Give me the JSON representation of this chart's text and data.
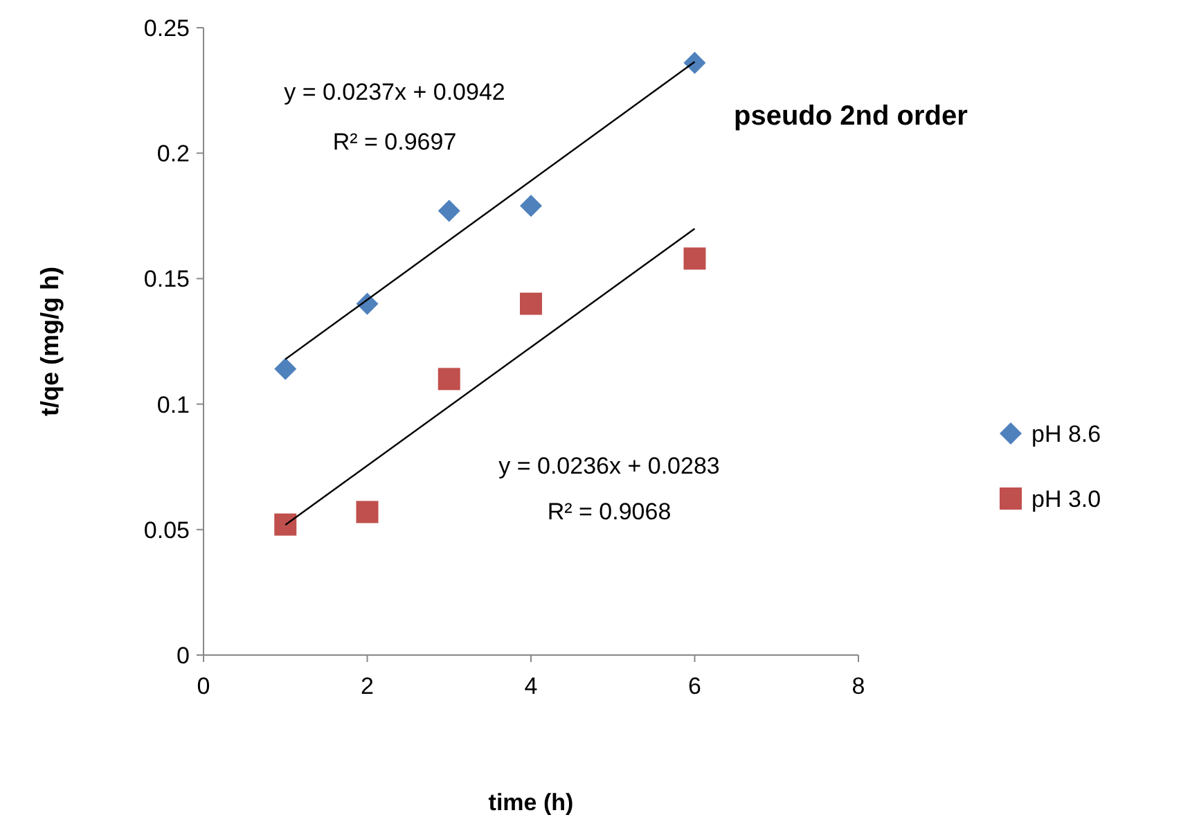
{
  "chart_data": {
    "type": "scatter",
    "xlabel": "time (h)",
    "ylabel": "t/qe (mg/g h)",
    "xlim": [
      0,
      8
    ],
    "xticks": [
      0,
      2,
      4,
      6,
      8
    ],
    "ylim": [
      0,
      0.25
    ],
    "yticks": [
      0,
      0.05,
      0.1,
      0.15,
      0.2,
      0.25
    ],
    "grid": false,
    "legend": "right",
    "series": [
      {
        "name": "pH 8.6",
        "marker": "diamond",
        "color": "#4f81bd",
        "x": [
          1,
          2,
          3,
          4,
          6
        ],
        "values": [
          0.114,
          0.14,
          0.177,
          0.179,
          0.236
        ]
      },
      {
        "name": "pH 3.0",
        "marker": "square",
        "color": "#c0504d",
        "x": [
          1,
          2,
          3,
          4,
          6
        ],
        "values": [
          0.052,
          0.057,
          0.11,
          0.14,
          0.158
        ]
      },
      {
        "type": "line",
        "color": "#000000",
        "x": [
          1,
          6
        ],
        "values": [
          0.1179,
          0.2364
        ]
      },
      {
        "type": "line",
        "color": "#000000",
        "x": [
          1,
          6
        ],
        "values": [
          0.0519,
          0.1699
        ]
      }
    ],
    "annotations": [
      "pseudo 2nd order",
      "y = 0.0237x + 0.0942",
      "R² = 0.9697",
      "y = 0.0236x + 0.0283",
      "R² = 0.9068"
    ]
  }
}
